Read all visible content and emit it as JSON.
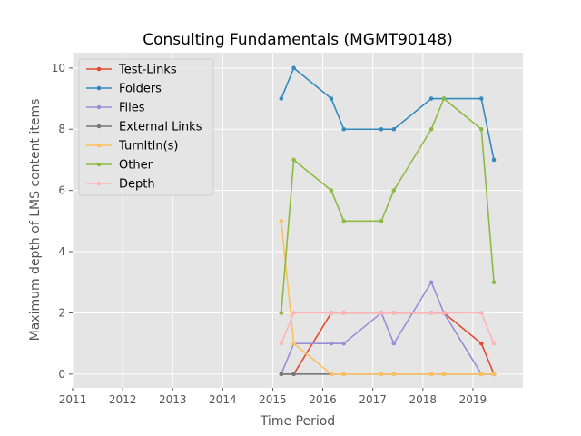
{
  "chart_data": {
    "type": "line",
    "title": "Consulting Fundamentals (MGMT90148)",
    "xlabel": "Time Period",
    "ylabel": "Maximum depth of LMS content items",
    "xlim": [
      2011,
      2020
    ],
    "ylim": [
      -0.45,
      10.5
    ],
    "x_ticks": [
      2011,
      2012,
      2013,
      2014,
      2015,
      2016,
      2017,
      2018,
      2019
    ],
    "y_ticks": [
      0,
      2,
      4,
      6,
      8,
      10
    ],
    "grid": true,
    "legend_position": "top-left",
    "x": [
      2015.17,
      2015.42,
      2016.17,
      2016.42,
      2017.17,
      2017.42,
      2018.17,
      2018.42,
      2019.17,
      2019.42
    ],
    "series": [
      {
        "name": "Test-Links",
        "color": "#E24A33",
        "values": [
          0,
          0,
          2,
          2,
          2,
          2,
          2,
          2,
          1,
          0
        ]
      },
      {
        "name": "Folders",
        "color": "#348ABD",
        "values": [
          9,
          10,
          9,
          8,
          8,
          8,
          9,
          9,
          9,
          7
        ]
      },
      {
        "name": "Files",
        "color": "#988ED5",
        "values": [
          0,
          1,
          1,
          1,
          2,
          1,
          3,
          2,
          0,
          0
        ]
      },
      {
        "name": "External Links",
        "color": "#777777",
        "values": [
          0,
          0,
          0,
          0,
          0,
          0,
          0,
          0,
          0,
          0
        ]
      },
      {
        "name": "TurnItIn(s)",
        "color": "#FBC15E",
        "values": [
          5,
          1,
          0,
          0,
          0,
          0,
          0,
          0,
          0,
          0
        ]
      },
      {
        "name": "Other",
        "color": "#8EBA42",
        "values": [
          2,
          7,
          6,
          5,
          5,
          6,
          8,
          9,
          8,
          3
        ]
      },
      {
        "name": "Depth",
        "color": "#FFB5B8",
        "values": [
          1,
          2,
          2,
          2,
          2,
          2,
          2,
          2,
          2,
          1
        ]
      }
    ]
  }
}
